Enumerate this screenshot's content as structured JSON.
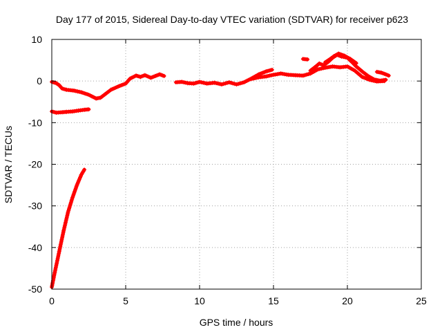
{
  "chart_data": {
    "type": "scatter",
    "title": "Day 177 of 2015, Sidereal Day-to-day VTEC variation (SDTVAR) for receiver p623",
    "xlabel": "GPS time / hours",
    "ylabel": "SDTVAR / TECUs",
    "xlim": [
      0,
      25
    ],
    "ylim": [
      -50,
      10
    ],
    "xticks": [
      0,
      5,
      10,
      15,
      20,
      25
    ],
    "yticks": [
      -50,
      -40,
      -30,
      -20,
      -10,
      0,
      10
    ],
    "grid": true,
    "series_color": "#ff0000",
    "segments": [
      {
        "points": [
          [
            0.0,
            -49.5
          ],
          [
            0.2,
            -46.0
          ],
          [
            0.5,
            -41.0
          ],
          [
            0.8,
            -36.0
          ],
          [
            1.1,
            -31.5
          ],
          [
            1.4,
            -28.0
          ],
          [
            1.7,
            -25.0
          ],
          [
            2.0,
            -22.5
          ],
          [
            2.2,
            -21.3
          ]
        ]
      },
      {
        "points": [
          [
            0.0,
            -7.3
          ],
          [
            0.3,
            -7.6
          ],
          [
            0.7,
            -7.5
          ],
          [
            1.0,
            -7.4
          ],
          [
            1.4,
            -7.3
          ],
          [
            1.8,
            -7.1
          ],
          [
            2.2,
            -6.9
          ],
          [
            2.5,
            -6.8
          ]
        ]
      },
      {
        "points": [
          [
            0.0,
            -0.2
          ],
          [
            0.3,
            -0.5
          ],
          [
            0.5,
            -1.0
          ],
          [
            0.7,
            -1.8
          ],
          [
            1.0,
            -2.1
          ],
          [
            1.5,
            -2.3
          ],
          [
            2.0,
            -2.7
          ],
          [
            2.5,
            -3.3
          ],
          [
            3.0,
            -4.2
          ],
          [
            3.3,
            -4.0
          ],
          [
            3.6,
            -3.2
          ],
          [
            4.0,
            -2.1
          ],
          [
            4.5,
            -1.3
          ],
          [
            5.0,
            -0.6
          ],
          [
            5.3,
            0.6
          ],
          [
            5.7,
            1.3
          ],
          [
            6.0,
            1.0
          ],
          [
            6.3,
            1.4
          ],
          [
            6.7,
            0.8
          ],
          [
            7.0,
            1.2
          ],
          [
            7.3,
            1.6
          ],
          [
            7.6,
            1.2
          ]
        ]
      },
      {
        "points": [
          [
            8.4,
            -0.3
          ],
          [
            8.8,
            -0.2
          ],
          [
            9.2,
            -0.5
          ],
          [
            9.6,
            -0.6
          ],
          [
            10.0,
            -0.2
          ],
          [
            10.5,
            -0.6
          ],
          [
            11.0,
            -0.4
          ],
          [
            11.5,
            -0.8
          ],
          [
            12.0,
            -0.3
          ],
          [
            12.5,
            -0.8
          ],
          [
            13.0,
            -0.3
          ],
          [
            13.5,
            0.6
          ],
          [
            14.0,
            1.6
          ],
          [
            14.5,
            2.3
          ],
          [
            14.9,
            2.7
          ]
        ]
      },
      {
        "points": [
          [
            13.5,
            0.5
          ],
          [
            14.0,
            0.9
          ],
          [
            14.5,
            1.1
          ],
          [
            15.0,
            1.5
          ],
          [
            15.5,
            1.8
          ],
          [
            16.0,
            1.5
          ],
          [
            16.5,
            1.4
          ],
          [
            17.0,
            1.3
          ],
          [
            17.5,
            1.8
          ],
          [
            18.0,
            2.8
          ],
          [
            18.5,
            3.2
          ],
          [
            19.0,
            3.5
          ],
          [
            19.5,
            3.3
          ],
          [
            20.0,
            3.5
          ],
          [
            20.5,
            2.5
          ],
          [
            21.0,
            1.0
          ],
          [
            21.5,
            0.3
          ],
          [
            22.0,
            -0.1
          ],
          [
            22.5,
            0.0
          ]
        ]
      },
      {
        "points": [
          [
            17.5,
            2.5
          ],
          [
            17.8,
            3.3
          ],
          [
            18.1,
            4.2
          ],
          [
            18.4,
            3.8
          ],
          [
            18.7,
            4.6
          ],
          [
            19.0,
            5.6
          ],
          [
            19.3,
            6.3
          ],
          [
            19.6,
            5.9
          ],
          [
            20.0,
            5.6
          ],
          [
            20.3,
            4.6
          ],
          [
            20.6,
            3.5
          ],
          [
            21.0,
            2.3
          ],
          [
            21.4,
            1.2
          ],
          [
            21.8,
            0.4
          ],
          [
            22.2,
            0.1
          ],
          [
            22.6,
            0.3
          ]
        ]
      },
      {
        "points": [
          [
            17.0,
            5.3
          ],
          [
            17.3,
            5.2
          ]
        ]
      },
      {
        "points": [
          [
            18.5,
            4.5
          ],
          [
            18.8,
            5.2
          ],
          [
            19.1,
            6.0
          ],
          [
            19.4,
            6.6
          ],
          [
            19.8,
            6.1
          ],
          [
            20.2,
            5.3
          ],
          [
            20.6,
            4.3
          ]
        ]
      },
      {
        "points": [
          [
            22.0,
            2.2
          ],
          [
            22.3,
            2.0
          ],
          [
            22.6,
            1.6
          ],
          [
            22.8,
            1.3
          ]
        ]
      }
    ]
  }
}
